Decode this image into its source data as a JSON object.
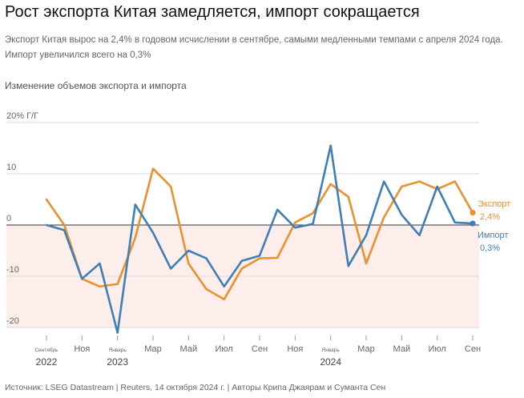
{
  "header": {
    "title": "Рост экспорта Китая замедляется, импорт сокращается",
    "subtitle": "Экспорт Китая вырос на 2,4% в годовом исчислении в сентябре, самыми медленными темпами с апреля 2024 года. Импорт увеличился всего на 0,3%",
    "chart_label": "Изменение объемов экспорта и импорта"
  },
  "footer": {
    "source": "Источник: LSEG Datastream | Reuters, 14 октября 2024 г. | Авторы Крипа Джаярам и Суманта Сен"
  },
  "colors": {
    "export": "#e8912d",
    "import": "#3f7fb5",
    "negative_band": "#fdeeec",
    "grid": "#d9d9d9"
  },
  "chart_data": {
    "type": "line",
    "title": "Изменение объемов экспорта и импорта",
    "ylim": [
      -20,
      20
    ],
    "yticks": [
      {
        "value": 20,
        "label": "20% Г/Г"
      },
      {
        "value": 10,
        "label": "10"
      },
      {
        "value": 0,
        "label": "0"
      },
      {
        "value": -10,
        "label": "-10"
      },
      {
        "value": -20,
        "label": "-20"
      }
    ],
    "x": [
      "2022-09",
      "2022-10",
      "2022-11",
      "2022-12",
      "2023-01",
      "2023-02",
      "2023-03",
      "2023-04",
      "2023-05",
      "2023-06",
      "2023-07",
      "2023-08",
      "2023-09",
      "2023-10",
      "2023-11",
      "2023-12",
      "2024-01",
      "2024-02",
      "2024-03",
      "2024-04",
      "2024-05",
      "2024-06",
      "2024-07",
      "2024-08",
      "2024-09"
    ],
    "xticks": [
      {
        "i": 0,
        "label": "Сентябрь",
        "small": true
      },
      {
        "i": 2,
        "label": "Ноя"
      },
      {
        "i": 4,
        "label": "Январь",
        "small": true
      },
      {
        "i": 6,
        "label": "Мар"
      },
      {
        "i": 8,
        "label": "Май"
      },
      {
        "i": 10,
        "label": "Июл"
      },
      {
        "i": 12,
        "label": "Сен"
      },
      {
        "i": 14,
        "label": "Ноя"
      },
      {
        "i": 16,
        "label": "Январь",
        "small": true
      },
      {
        "i": 18,
        "label": "Мар"
      },
      {
        "i": 20,
        "label": "Май"
      },
      {
        "i": 22,
        "label": "Июл"
      },
      {
        "i": 24,
        "label": "Сен"
      }
    ],
    "years": [
      {
        "i": 0,
        "label": "2022"
      },
      {
        "i": 4,
        "label": "2023"
      },
      {
        "i": 16,
        "label": "2024"
      }
    ],
    "series": [
      {
        "name": "Экспорт",
        "end_label": "2,4%",
        "color": "#e8912d",
        "values": [
          5.0,
          0.0,
          -10.5,
          -12.0,
          -11.5,
          -2.5,
          11.0,
          7.5,
          -7.5,
          -12.5,
          -14.5,
          -8.5,
          -6.5,
          -6.4,
          0.5,
          2.3,
          8.0,
          5.5,
          -7.5,
          1.5,
          7.5,
          8.5,
          7.0,
          8.5,
          2.4
        ]
      },
      {
        "name": "Импорт",
        "end_label": "0,3%",
        "color": "#3f7fb5",
        "values": [
          0.0,
          -1.0,
          -10.5,
          -7.5,
          -21.0,
          4.0,
          -1.5,
          -8.5,
          -5.0,
          -6.5,
          -12.0,
          -7.0,
          -6.0,
          3.0,
          -0.5,
          0.2,
          15.5,
          -8.0,
          -2.0,
          8.5,
          2.0,
          -2.0,
          7.5,
          0.5,
          0.3
        ]
      }
    ]
  }
}
